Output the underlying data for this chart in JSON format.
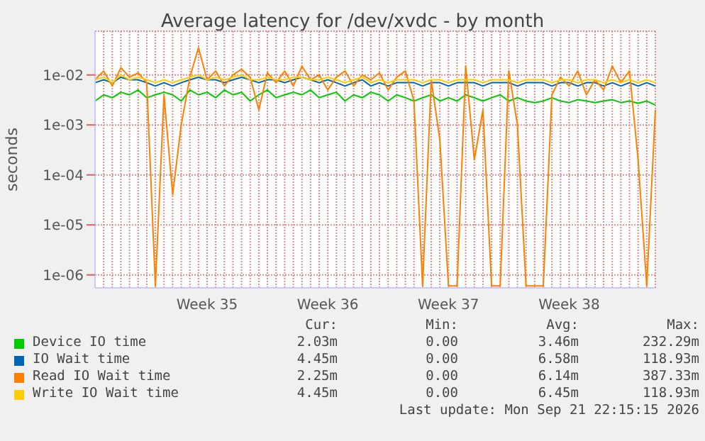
{
  "chart_data": {
    "type": "line",
    "title": "Average latency for /dev/xvdc - by month",
    "ylabel": "seconds",
    "log": "y",
    "grid": true,
    "legend": "bottom",
    "marker": "none",
    "line_style": "solid",
    "categories": [
      null,
      null,
      null,
      null,
      null,
      null,
      null,
      null,
      null,
      null,
      null,
      null,
      null,
      "Week 35",
      null,
      null,
      null,
      null,
      null,
      null,
      null,
      null,
      null,
      null,
      null,
      null,
      null,
      "Week 36",
      null,
      null,
      null,
      null,
      null,
      null,
      null,
      null,
      null,
      null,
      null,
      null,
      null,
      "Week 37",
      null,
      null,
      null,
      null,
      null,
      null,
      null,
      null,
      null,
      null,
      null,
      null,
      null,
      "Week 38",
      null,
      null,
      null,
      null,
      null,
      null,
      null,
      null,
      null,
      null
    ],
    "ylim": [
      5.5e-07,
      0.075
    ],
    "yticks": [
      {
        "value": 1e-06,
        "label": "1e-06"
      },
      {
        "value": 1e-05,
        "label": "1e-05"
      },
      {
        "value": 0.0001,
        "label": "1e-04"
      },
      {
        "value": 0.001,
        "label": "1e-03"
      },
      {
        "value": 0.01,
        "label": "1e-02"
      }
    ],
    "series": [
      {
        "name": "Device IO time",
        "color": "#00cc00",
        "values": [
          0.003,
          0.004,
          0.0035,
          0.0045,
          0.004,
          0.005,
          0.0035,
          0.004,
          0.0045,
          0.004,
          0.003,
          0.005,
          0.004,
          0.0045,
          0.0035,
          0.005,
          0.004,
          0.0045,
          0.003,
          0.004,
          0.005,
          0.0035,
          0.004,
          0.0045,
          0.004,
          0.005,
          0.0035,
          0.004,
          0.0045,
          0.003,
          0.004,
          0.0035,
          0.0045,
          0.004,
          0.003,
          0.004,
          0.0035,
          0.003,
          0.0035,
          0.004,
          0.003,
          0.0035,
          0.003,
          0.004,
          0.0035,
          0.003,
          0.0035,
          0.004,
          0.003,
          0.0035,
          0.003,
          0.0028,
          0.003,
          0.0035,
          0.003,
          0.0028,
          0.0032,
          0.003,
          0.0028,
          0.003,
          0.0032,
          0.0028,
          0.003,
          0.0027,
          0.003,
          0.0025
        ]
      },
      {
        "name": "IO Wait time",
        "color": "#0066b3",
        "values": [
          0.007,
          0.008,
          0.007,
          0.009,
          0.008,
          0.008,
          0.007,
          0.006,
          0.007,
          0.006,
          0.007,
          0.008,
          0.009,
          0.008,
          0.008,
          0.007,
          0.008,
          0.009,
          0.008,
          0.007,
          0.008,
          0.008,
          0.007,
          0.008,
          0.009,
          0.008,
          0.007,
          0.008,
          0.007,
          0.006,
          0.007,
          0.008,
          0.006,
          0.007,
          0.006,
          0.007,
          0.007,
          0.007,
          0.006,
          0.007,
          0.007,
          0.006,
          0.007,
          0.007,
          0.007,
          0.006,
          0.007,
          0.007,
          0.007,
          0.006,
          0.007,
          0.007,
          0.007,
          0.006,
          0.007,
          0.007,
          0.006,
          0.007,
          0.007,
          0.006,
          0.007,
          0.006,
          0.007,
          0.006,
          0.007,
          0.006
        ]
      },
      {
        "name": "Read IO Wait time",
        "color": "#ff8000",
        "values": [
          0.008,
          0.012,
          0.006,
          0.014,
          0.009,
          0.011,
          0.007,
          6e-07,
          0.004,
          4e-05,
          0.001,
          0.009,
          0.035,
          0.008,
          0.012,
          0.006,
          0.01,
          0.013,
          0.009,
          0.002,
          0.011,
          0.007,
          0.012,
          0.006,
          0.015,
          0.008,
          0.01,
          0.005,
          0.009,
          0.012,
          0.006,
          0.01,
          0.008,
          0.011,
          0.005,
          0.009,
          0.012,
          0.003,
          6e-07,
          0.008,
          0.0005,
          6e-07,
          6e-07,
          0.015,
          0.0002,
          0.002,
          6e-07,
          6e-07,
          0.012,
          0.001,
          6e-07,
          6e-07,
          6e-07,
          0.004,
          0.009,
          0.006,
          0.012,
          0.004,
          0.008,
          0.005,
          0.015,
          0.007,
          0.012,
          0.0002,
          6e-07,
          0.002
        ]
      },
      {
        "name": "Write IO Wait time",
        "color": "#ffcc00",
        "values": [
          0.008,
          0.009,
          0.007,
          0.01,
          0.008,
          0.009,
          0.008,
          0.007,
          0.008,
          0.007,
          0.008,
          0.009,
          0.01,
          0.008,
          0.009,
          0.008,
          0.009,
          0.01,
          0.008,
          0.008,
          0.009,
          0.008,
          0.008,
          0.009,
          0.009,
          0.008,
          0.008,
          0.009,
          0.008,
          0.007,
          0.008,
          0.009,
          0.007,
          0.008,
          0.007,
          0.008,
          0.008,
          0.008,
          0.007,
          0.008,
          0.008,
          0.007,
          0.008,
          0.008,
          0.008,
          0.007,
          0.008,
          0.008,
          0.008,
          0.007,
          0.008,
          0.008,
          0.008,
          0.007,
          0.008,
          0.008,
          0.007,
          0.008,
          0.008,
          0.007,
          0.008,
          0.007,
          0.008,
          0.007,
          0.008,
          0.007
        ]
      }
    ],
    "annotations": [
      "Cur:",
      "Min:",
      "Avg:",
      "Max:",
      "2.03m",
      "0.00",
      "3.46m",
      "232.29m",
      "4.45m",
      "0.00",
      "6.58m",
      "118.93m",
      "2.25m",
      "0.00",
      "6.14m",
      "387.33m",
      "4.45m",
      "0.00",
      "6.45m",
      "118.93m",
      "Last update: Mon Sep 21 22:15:15 2026"
    ]
  }
}
